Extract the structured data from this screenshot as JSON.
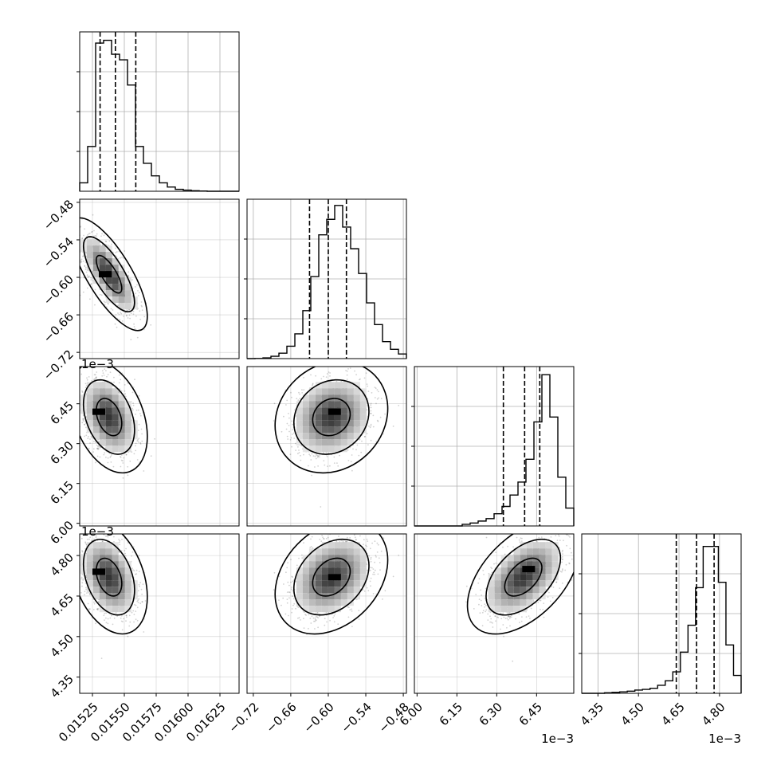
{
  "chart_data": {
    "type": "corner",
    "parameters": [
      {
        "offset_label": "",
        "range": [
          0.01515,
          0.0164
        ],
        "bottom_tick_labels": [
          {
            "value": 0.01525,
            "label": "0.01525"
          },
          {
            "value": 0.0155,
            "label": "0.01550"
          },
          {
            "value": 0.01575,
            "label": "0.01575"
          },
          {
            "value": 0.016,
            "label": "0.01600"
          },
          {
            "value": 0.01625,
            "label": "0.01625"
          }
        ],
        "left_tick_labels": [],
        "quantiles": [
          0.01531,
          0.01543,
          0.01559
        ],
        "hist_counts": [
          30,
          160,
          530,
          540,
          490,
          470,
          380,
          160,
          100,
          55,
          30,
          15,
          7,
          4,
          2,
          1,
          0,
          0,
          0,
          0
        ],
        "hist_ymax": 570,
        "color": "#000000"
      },
      {
        "offset_label": "",
        "range": [
          -0.73,
          -0.475
        ],
        "bottom_tick_labels": [
          {
            "value": -0.72,
            "label": "−0.72"
          },
          {
            "value": -0.66,
            "label": "−0.66"
          },
          {
            "value": -0.6,
            "label": "−0.60"
          },
          {
            "value": -0.54,
            "label": "−0.54"
          },
          {
            "value": -0.48,
            "label": "−0.48"
          }
        ],
        "left_tick_labels": [
          {
            "value": -0.48,
            "label": "−0.48"
          },
          {
            "value": -0.54,
            "label": "−0.54"
          },
          {
            "value": -0.6,
            "label": "−0.60"
          },
          {
            "value": -0.66,
            "label": "−0.66"
          },
          {
            "value": -0.72,
            "label": "−0.72"
          }
        ],
        "quantiles": [
          -0.63,
          -0.6,
          -0.571
        ],
        "hist_counts": [
          0,
          1,
          5,
          15,
          35,
          80,
          160,
          310,
          530,
          800,
          900,
          990,
          850,
          710,
          550,
          360,
          220,
          110,
          60,
          30
        ],
        "hist_ymax": 1030,
        "color": "#000000"
      },
      {
        "offset_label": "1e−3",
        "range": [
          5.99,
          6.59
        ],
        "bottom_tick_labels": [
          {
            "value": 6.0,
            "label": "6.00"
          },
          {
            "value": 6.15,
            "label": "6.15"
          },
          {
            "value": 6.3,
            "label": "6.30"
          },
          {
            "value": 6.45,
            "label": "6.45"
          }
        ],
        "left_tick_labels": [
          {
            "value": 6.45,
            "label": "6.45"
          },
          {
            "value": 6.3,
            "label": "6.30"
          },
          {
            "value": 6.15,
            "label": "6.15"
          },
          {
            "value": 6.0,
            "label": "6.00"
          }
        ],
        "quantiles": [
          6.325,
          6.405,
          6.462
        ],
        "hist_counts": [
          0,
          0,
          0,
          0,
          0,
          0,
          10,
          18,
          30,
          45,
          75,
          120,
          190,
          270,
          410,
          640,
          930,
          670,
          300,
          110
        ],
        "hist_ymax": 980,
        "color": "#000000"
      },
      {
        "offset_label": "1e−3",
        "range": [
          4.29,
          4.88
        ],
        "bottom_tick_labels": [
          {
            "value": 4.35,
            "label": "4.35"
          },
          {
            "value": 4.5,
            "label": "4.50"
          },
          {
            "value": 4.65,
            "label": "4.65"
          },
          {
            "value": 4.8,
            "label": "4.80"
          }
        ],
        "left_tick_labels": [
          {
            "value": 4.8,
            "label": "4.80"
          },
          {
            "value": 4.65,
            "label": "4.65"
          },
          {
            "value": 4.5,
            "label": "4.50"
          },
          {
            "value": 4.35,
            "label": "4.35"
          }
        ],
        "quantiles": [
          4.64,
          4.715,
          4.78
        ],
        "hist_counts": [
          0,
          0,
          0,
          3,
          5,
          8,
          12,
          18,
          22,
          28,
          45,
          70,
          120,
          230,
          380,
          590,
          820,
          820,
          620,
          270,
          100
        ],
        "hist_ymax": 890,
        "color": "#000000"
      }
    ],
    "pairs": [
      {
        "x_param": 0,
        "y_param": 1,
        "center": [
          0.01538,
          -0.595
        ],
        "spread": [
          0.0001,
          0.03
        ],
        "rho": -0.75,
        "mode": [
          0.01535,
          -0.595
        ]
      },
      {
        "x_param": 0,
        "y_param": 2,
        "center": [
          0.01538,
          6.4
        ],
        "spread": [
          0.0001,
          0.07
        ],
        "rho": -0.35,
        "mode": [
          0.0153,
          6.42
        ]
      },
      {
        "x_param": 1,
        "y_param": 2,
        "center": [
          -0.595,
          6.4
        ],
        "spread": [
          0.03,
          0.07
        ],
        "rho": 0.15,
        "mode": [
          -0.59,
          6.42
        ]
      },
      {
        "x_param": 0,
        "y_param": 3,
        "center": [
          0.01538,
          4.72
        ],
        "spread": [
          0.0001,
          0.07
        ],
        "rho": -0.35,
        "mode": [
          0.0153,
          4.74
        ]
      },
      {
        "x_param": 1,
        "y_param": 3,
        "center": [
          -0.595,
          4.72
        ],
        "spread": [
          0.03,
          0.07
        ],
        "rho": 0.3,
        "mode": [
          -0.59,
          4.72
        ]
      },
      {
        "x_param": 2,
        "y_param": 3,
        "center": [
          6.4,
          4.72
        ],
        "spread": [
          0.07,
          0.07
        ],
        "rho": 0.5,
        "mode": [
          6.42,
          4.75
        ]
      }
    ],
    "levels": [
      0.393,
      0.865,
      0.989
    ],
    "grid": true,
    "colors": {
      "axis": "#000000",
      "grid": "#b0b0b0",
      "scatter": "#000000",
      "hist_line": "#000000"
    }
  }
}
